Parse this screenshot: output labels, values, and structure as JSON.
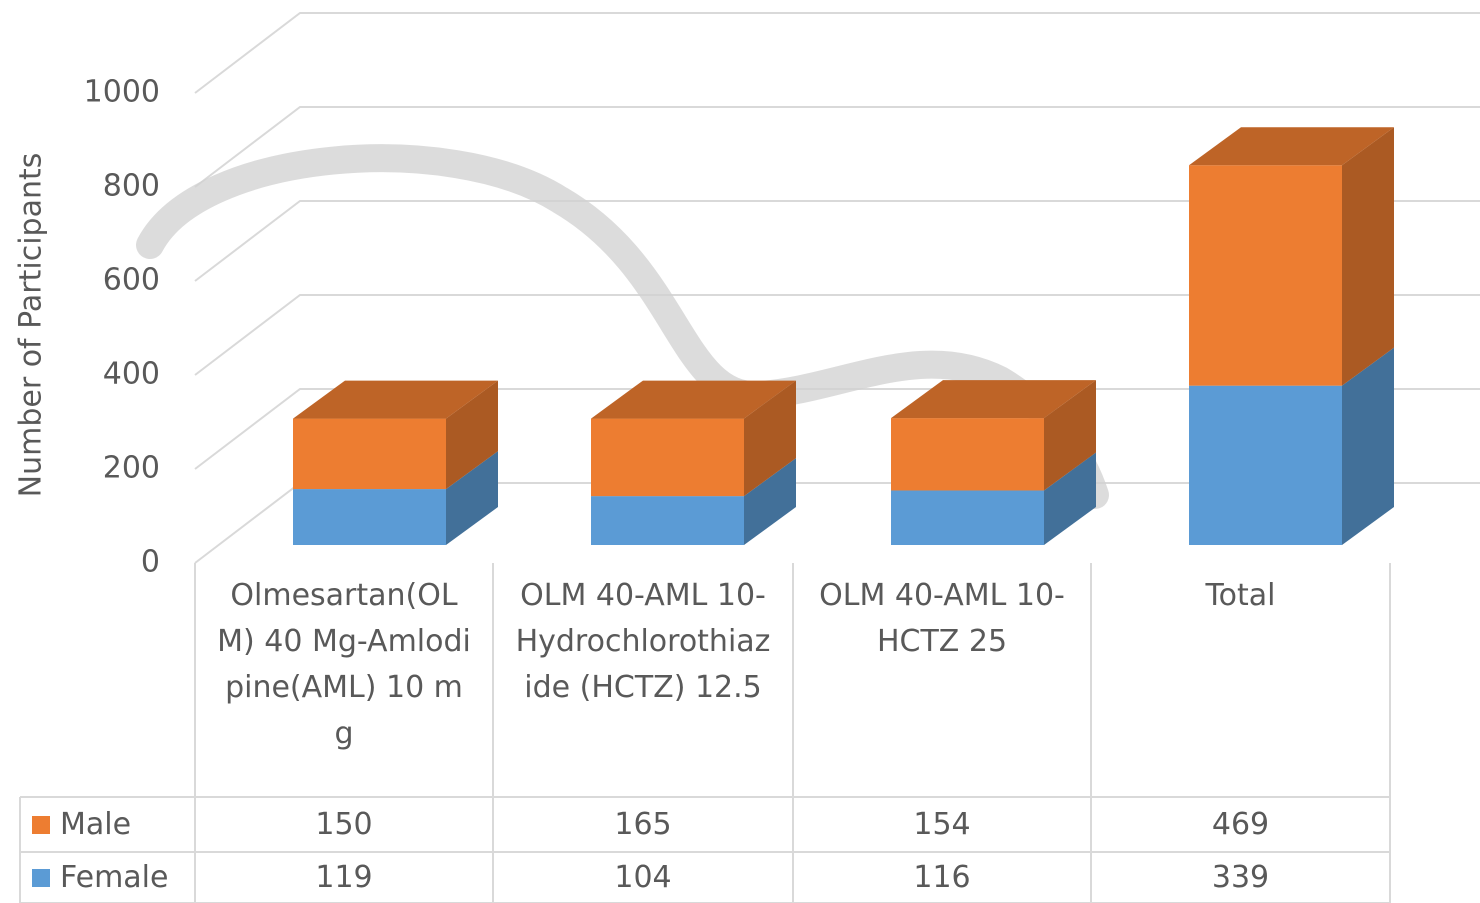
{
  "chart_data": {
    "type": "bar",
    "stacked": true,
    "grid": true,
    "y_label": "Number of Participants",
    "categories": [
      "Olmesartan(OLM) 40 Mg-Amlodipine(AML) 10 mg",
      "OLM 40-AML 10-Hydrochlorothiazide (HCTZ) 12.5",
      "OLM 40-AML 10-HCTZ 25",
      "Total"
    ],
    "series": [
      {
        "name": "Male",
        "color": "#ed7d31",
        "values": [
          150,
          165,
          154,
          469
        ]
      },
      {
        "name": "Female",
        "color": "#5b9bd5",
        "values": [
          119,
          104,
          116,
          339
        ]
      }
    ],
    "ylim": [
      0,
      1000
    ],
    "yticks": [
      0,
      200,
      400,
      600,
      800,
      1000
    ]
  }
}
